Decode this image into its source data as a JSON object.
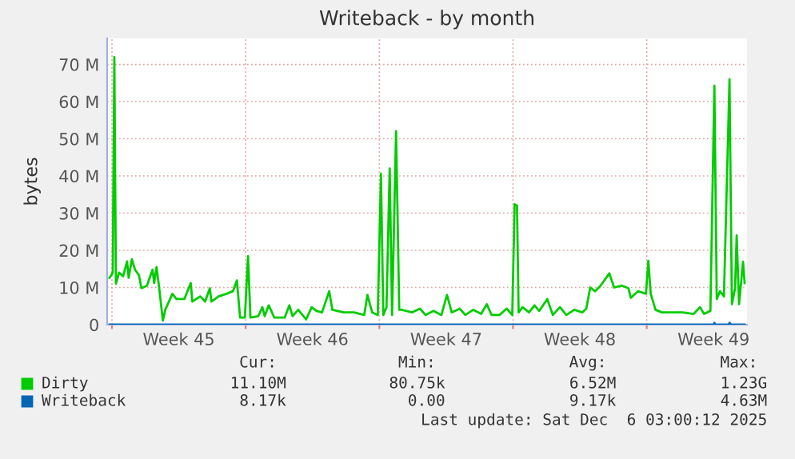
{
  "chart_data": {
    "type": "line",
    "title": "Writeback - by month",
    "ylabel": "bytes",
    "xlim": [
      "2025-11-02T18:00",
      "2025-12-06T06:00"
    ],
    "ylim": [
      0,
      77
    ],
    "xticks": [
      {
        "value": "2025-11-03",
        "label": null
      },
      {
        "value": "2025-11-06T12:00",
        "label": "Week 45"
      },
      {
        "value": "2025-11-10",
        "label": null
      },
      {
        "value": "2025-11-13T12:00",
        "label": "Week 46"
      },
      {
        "value": "2025-11-17",
        "label": null
      },
      {
        "value": "2025-11-20T12:00",
        "label": "Week 47"
      },
      {
        "value": "2025-11-24",
        "label": null
      },
      {
        "value": "2025-11-27T12:00",
        "label": "Week 48"
      },
      {
        "value": "2025-12-01",
        "label": null
      },
      {
        "value": "2025-12-04T12:00",
        "label": "Week 49"
      }
    ],
    "yticks": [
      0,
      {
        "value": 10,
        "label": "10 M"
      },
      {
        "value": 20,
        "label": "20 M"
      },
      {
        "value": 30,
        "label": "30 M"
      },
      {
        "value": 40,
        "label": "40 M"
      },
      {
        "value": 50,
        "label": "50 M"
      },
      {
        "value": 60,
        "label": "60 M"
      },
      {
        "value": 70,
        "label": "70 M"
      }
    ],
    "grid": true,
    "legend": "bottom",
    "series": [
      {
        "name": "Dirty",
        "color": "#00cc00",
        "x": [
          "2025-11-02T21:00",
          "2025-11-03T01:00",
          "2025-11-03T03:00",
          "2025-11-03T05:00",
          "2025-11-03T09:00",
          "2025-11-03T14:00",
          "2025-11-03T19:00",
          "2025-11-03T21:00",
          "2025-11-04T01:00",
          "2025-11-04T05:00",
          "2025-11-04T10:00",
          "2025-11-04T13:00",
          "2025-11-04T20:00",
          "2025-11-05T03:00",
          "2025-11-05T05:00",
          "2025-11-05T08:00",
          "2025-11-05T11:00",
          "2025-11-05T16:00",
          "2025-11-05T19:00",
          "2025-11-06T04:00",
          "2025-11-06T09:00",
          "2025-11-06T19:00",
          "2025-11-07T03:00",
          "2025-11-07T05:00",
          "2025-11-07T15:00",
          "2025-11-07T21:00",
          "2025-11-08T03:00",
          "2025-11-08T05:00",
          "2025-11-08T14:00",
          "2025-11-09T00:00",
          "2025-11-09T08:00",
          "2025-11-09T13:00",
          "2025-11-09T17:00",
          "2025-11-09T23:00",
          "2025-11-10T03:00",
          "2025-11-10T06:00",
          "2025-11-10T16:00",
          "2025-11-10T21:00",
          "2025-11-11T00:00",
          "2025-11-11T05:00",
          "2025-11-11T12:00",
          "2025-11-12T01:00",
          "2025-11-12T07:00",
          "2025-11-12T11:00",
          "2025-11-12T18:00",
          "2025-11-13T04:00",
          "2025-11-13T11:00",
          "2025-11-13T17:00",
          "2025-11-14T00:00",
          "2025-11-14T09:00",
          "2025-11-14T13:00",
          "2025-11-15T03:00",
          "2025-11-15T16:00",
          "2025-11-16T05:00",
          "2025-11-16T09:00",
          "2025-11-16T15:00",
          "2025-11-16T22:00",
          "2025-11-17T02:00",
          "2025-11-17T05:00",
          "2025-11-17T09:00",
          "2025-11-17T13:00",
          "2025-11-17T16:00",
          "2025-11-17T21:00",
          "2025-11-18T01:00",
          "2025-11-18T04:00",
          "2025-11-18T17:00",
          "2025-11-19T03:00",
          "2025-11-19T10:00",
          "2025-11-19T20:00",
          "2025-11-20T06:00",
          "2025-11-20T13:00",
          "2025-11-20T19:00",
          "2025-11-21T05:00",
          "2025-11-21T12:00",
          "2025-11-21T22:00",
          "2025-11-22T08:00",
          "2025-11-22T15:00",
          "2025-11-22T21:00",
          "2025-11-23T07:00",
          "2025-11-23T16:00",
          "2025-11-23T23:00",
          "2025-11-24T02:00",
          "2025-11-24T05:00",
          "2025-11-24T07:00",
          "2025-11-24T12:00",
          "2025-11-24T20:00",
          "2025-11-25T03:00",
          "2025-11-25T09:00",
          "2025-11-25T19:00",
          "2025-11-26T02:00",
          "2025-11-26T11:00",
          "2025-11-26T19:00",
          "2025-11-27T05:00",
          "2025-11-27T15:00",
          "2025-11-27T20:00",
          "2025-11-28T01:00",
          "2025-11-28T07:00",
          "2025-11-28T14:00",
          "2025-11-29T01:00",
          "2025-11-29T07:00",
          "2025-11-29T17:00",
          "2025-11-30T01:00",
          "2025-11-30T04:00",
          "2025-11-30T13:00",
          "2025-11-30T23:00",
          "2025-12-01T02:00",
          "2025-12-01T05:00",
          "2025-12-01T11:00",
          "2025-12-01T19:00",
          "2025-12-02T08:00",
          "2025-12-02T21:00",
          "2025-12-03T11:00",
          "2025-12-03T19:00",
          "2025-12-04T00:00",
          "2025-12-04T08:00",
          "2025-12-04T13:00",
          "2025-12-04T16:00",
          "2025-12-04T20:00",
          "2025-12-05T01:00",
          "2025-12-05T08:00",
          "2025-12-05T11:00",
          "2025-12-05T15:00",
          "2025-12-05T17:00",
          "2025-12-05T20:00",
          "2025-12-06T01:00",
          "2025-12-06T03:00"
        ],
        "values": [
          12.6,
          14,
          72,
          11,
          14,
          13,
          17,
          12.6,
          17.6,
          14.8,
          13.3,
          9.8,
          10.5,
          14.8,
          11.2,
          15.5,
          10.5,
          1.1,
          4,
          8.3,
          6.9,
          6.9,
          11.2,
          6.2,
          7.6,
          6.2,
          9.8,
          6.2,
          7.6,
          8.3,
          9,
          11.9,
          1.9,
          1.9,
          18.4,
          1.9,
          2.3,
          4.7,
          2.3,
          5.2,
          1.9,
          1.9,
          5.2,
          2.3,
          4,
          1.4,
          4.7,
          3.7,
          3.3,
          9,
          4,
          3.3,
          3.3,
          2.6,
          8,
          3.3,
          2.6,
          40.6,
          2.6,
          4.7,
          42,
          2.6,
          52,
          4,
          4,
          3.3,
          4.3,
          2.6,
          3.7,
          2.6,
          8,
          3.3,
          4.3,
          2.6,
          4,
          2.9,
          5.5,
          2.6,
          2.6,
          4.3,
          2.6,
          32.4,
          32,
          3.3,
          4.7,
          3.3,
          5.2,
          3.7,
          6.9,
          2.6,
          4.7,
          2.6,
          4,
          3.3,
          4.3,
          10,
          9,
          10.5,
          13.8,
          10,
          10.5,
          9.8,
          7.2,
          9,
          8.3,
          17.2,
          8.3,
          4,
          3.3,
          3.3,
          3.3,
          2.9,
          4.7,
          2.9,
          3.7,
          64.3,
          6.9,
          9,
          7.6,
          66,
          5.5,
          9.8,
          24,
          5.5,
          16.9,
          11.2
        ]
      },
      {
        "name": "Writeback",
        "color": "#0066b3",
        "x": [
          "2025-11-02T21:00",
          "2025-12-04T12:00",
          "2025-12-04T13:00",
          "2025-12-04T14:00",
          "2025-12-05T07:00",
          "2025-12-05T08:00",
          "2025-12-05T10:00",
          "2025-12-06T03:00"
        ],
        "values": [
          0,
          0,
          0.5,
          0,
          0,
          0.5,
          0,
          0
        ]
      }
    ],
    "annotations": [
      "Cur:",
      "Min:",
      "Avg:",
      "Max:",
      "11.10M",
      "80.75k",
      "6.52M",
      "1.23G",
      "8.17k",
      "0.00",
      "9.17k",
      "4.63M",
      "Last update: Sat Dec  6 03:00:12 2025"
    ]
  }
}
